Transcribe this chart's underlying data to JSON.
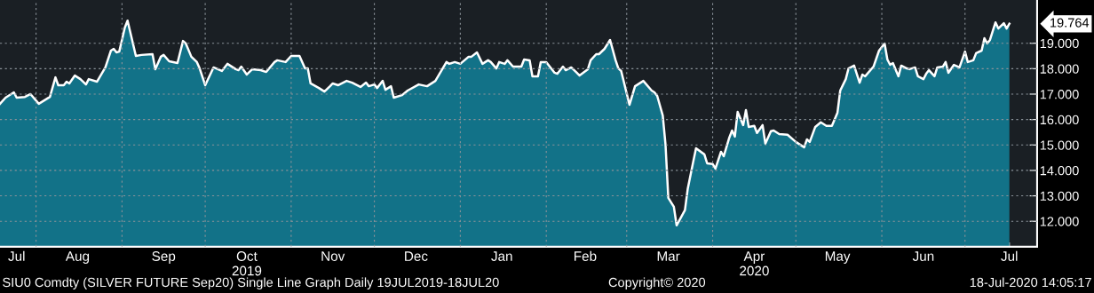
{
  "chart_data": {
    "type": "area",
    "grid": true,
    "legend": false,
    "x": [
      "2019-07-19",
      "2019-07-21",
      "2019-07-24",
      "2019-07-25",
      "2019-07-28",
      "2019-07-30",
      "2019-08-02",
      "2019-08-06",
      "2019-08-08",
      "2019-08-09",
      "2019-08-11",
      "2019-08-12",
      "2019-08-13",
      "2019-08-15",
      "2019-08-17",
      "2019-08-19",
      "2019-08-20",
      "2019-08-23",
      "2019-08-26",
      "2019-08-28",
      "2019-08-29",
      "2019-08-30",
      "2019-08-31",
      "2019-09-02",
      "2019-09-03",
      "2019-09-06",
      "2019-09-08",
      "2019-09-12",
      "2019-09-13",
      "2019-09-15",
      "2019-09-16",
      "2019-09-18",
      "2019-09-21",
      "2019-09-23",
      "2019-09-24",
      "2019-09-26",
      "2019-09-28",
      "2019-09-29",
      "2019-10-01",
      "2019-10-04",
      "2019-10-05",
      "2019-10-07",
      "2019-10-09",
      "2019-10-12",
      "2019-10-13",
      "2019-10-14",
      "2019-10-16",
      "2019-10-18",
      "2019-10-21",
      "2019-10-23",
      "2019-10-26",
      "2019-10-27",
      "2019-10-30",
      "2019-11-01",
      "2019-11-04",
      "2019-11-06",
      "2019-11-07",
      "2019-11-08",
      "2019-11-11",
      "2019-11-13",
      "2019-11-15",
      "2019-11-16",
      "2019-11-18",
      "2019-11-21",
      "2019-11-23",
      "2019-11-26",
      "2019-11-28",
      "2019-11-29",
      "2019-12-01",
      "2019-12-02",
      "2019-12-04",
      "2019-12-05",
      "2019-12-07",
      "2019-12-08",
      "2019-12-11",
      "2019-12-13",
      "2019-12-17",
      "2019-12-20",
      "2019-12-23",
      "2019-12-27",
      "2019-12-28",
      "2019-12-30",
      "2020-01-01",
      "2020-01-04",
      "2020-01-05",
      "2020-01-07",
      "2020-01-09",
      "2020-01-11",
      "2020-01-12",
      "2020-01-14",
      "2020-01-15",
      "2020-01-17",
      "2020-01-18",
      "2020-01-20",
      "2020-01-23",
      "2020-01-24",
      "2020-01-26",
      "2020-01-27",
      "2020-01-29",
      "2020-01-30",
      "2020-02-01",
      "2020-02-04",
      "2020-02-05",
      "2020-02-07",
      "2020-02-08",
      "2020-02-10",
      "2020-02-12",
      "2020-02-13",
      "2020-02-16",
      "2020-02-17",
      "2020-02-19",
      "2020-02-20",
      "2020-02-22",
      "2020-02-24",
      "2020-02-26",
      "2020-02-27",
      "2020-02-28",
      "2020-03-02",
      "2020-03-04",
      "2020-03-07",
      "2020-03-10",
      "2020-03-11",
      "2020-03-12",
      "2020-03-14",
      "2020-03-15",
      "2020-03-16",
      "2020-03-18",
      "2020-03-19",
      "2020-03-22",
      "2020-03-23",
      "2020-03-25",
      "2020-03-26",
      "2020-03-29",
      "2020-03-30",
      "2020-04-01",
      "2020-04-02",
      "2020-04-04",
      "2020-04-05",
      "2020-04-07",
      "2020-04-08",
      "2020-04-09",
      "2020-04-10",
      "2020-04-12",
      "2020-04-13",
      "2020-04-14",
      "2020-04-16",
      "2020-04-17",
      "2020-04-19",
      "2020-04-20",
      "2020-04-22",
      "2020-04-23",
      "2020-04-25",
      "2020-04-28",
      "2020-05-01",
      "2020-05-02",
      "2020-05-04",
      "2020-05-05",
      "2020-05-06",
      "2020-05-08",
      "2020-05-10",
      "2020-05-12",
      "2020-05-14",
      "2020-05-16",
      "2020-05-17",
      "2020-05-19",
      "2020-05-20",
      "2020-05-22",
      "2020-05-24",
      "2020-05-25",
      "2020-05-26",
      "2020-05-29",
      "2020-05-31",
      "2020-06-02",
      "2020-06-03",
      "2020-06-04",
      "2020-06-05",
      "2020-06-07",
      "2020-06-08",
      "2020-06-10",
      "2020-06-11",
      "2020-06-13",
      "2020-06-14",
      "2020-06-16",
      "2020-06-17",
      "2020-06-18",
      "2020-06-20",
      "2020-06-21",
      "2020-06-23",
      "2020-06-24",
      "2020-06-25",
      "2020-06-27",
      "2020-06-29",
      "2020-07-01",
      "2020-07-02",
      "2020-07-04",
      "2020-07-05",
      "2020-07-07",
      "2020-07-08",
      "2020-07-09",
      "2020-07-10",
      "2020-07-12",
      "2020-07-13",
      "2020-07-15",
      "2020-07-16",
      "2020-07-17"
    ],
    "series": [
      {
        "color": "#127288",
        "values": [
          16.62,
          16.86,
          17.07,
          16.86,
          16.89,
          17.0,
          16.62,
          16.89,
          17.66,
          17.35,
          17.35,
          17.49,
          17.42,
          17.73,
          17.59,
          17.38,
          17.59,
          17.49,
          18.05,
          18.71,
          18.78,
          18.64,
          18.67,
          19.61,
          19.89,
          18.5,
          18.54,
          18.57,
          17.98,
          18.47,
          18.54,
          18.29,
          18.22,
          19.09,
          18.99,
          18.47,
          18.26,
          18.01,
          17.35,
          18.05,
          18.01,
          17.91,
          18.19,
          17.98,
          17.94,
          18.08,
          17.77,
          17.98,
          17.94,
          17.87,
          18.26,
          18.33,
          18.26,
          18.5,
          18.5,
          18.01,
          18.01,
          17.42,
          17.24,
          17.1,
          17.31,
          17.42,
          17.35,
          17.52,
          17.45,
          17.28,
          17.45,
          17.31,
          17.38,
          17.24,
          17.52,
          17.17,
          17.31,
          16.86,
          16.96,
          17.14,
          17.38,
          17.31,
          17.52,
          18.26,
          18.19,
          18.26,
          18.19,
          18.47,
          18.47,
          18.64,
          18.19,
          18.33,
          18.26,
          18.01,
          18.26,
          18.19,
          18.33,
          18.08,
          18.08,
          18.36,
          18.33,
          17.7,
          17.7,
          18.26,
          18.26,
          17.84,
          17.8,
          18.08,
          17.94,
          18.05,
          17.84,
          17.73,
          17.98,
          18.33,
          18.57,
          18.57,
          18.78,
          19.13,
          18.33,
          18.01,
          17.91,
          16.58,
          17.31,
          17.52,
          17.14,
          17.07,
          16.93,
          16.16,
          15.01,
          12.92,
          12.57,
          11.84,
          12.44,
          13.27,
          14.35,
          14.87,
          14.63,
          14.28,
          14.25,
          14.07,
          14.73,
          14.56,
          15.29,
          15.57,
          15.33,
          16.3,
          15.78,
          16.37,
          15.71,
          15.75,
          15.47,
          15.78,
          15.05,
          15.54,
          15.57,
          15.43,
          15.4,
          15.12,
          15.05,
          14.91,
          15.22,
          15.12,
          15.71,
          15.89,
          15.75,
          15.75,
          16.27,
          17.14,
          17.59,
          18.01,
          18.12,
          17.45,
          17.77,
          17.7,
          18.08,
          18.71,
          18.99,
          18.36,
          18.15,
          18.22,
          17.7,
          18.12,
          18.01,
          17.98,
          18.05,
          17.7,
          17.59,
          17.8,
          17.94,
          17.7,
          18.05,
          18.08,
          18.26,
          17.84,
          18.15,
          18.05,
          18.67,
          18.26,
          18.33,
          18.61,
          18.71,
          19.2,
          18.99,
          19.13,
          19.82,
          19.58,
          19.79,
          19.58,
          19.764
        ]
      }
    ],
    "xlim": [
      "2019-07-19",
      "2020-07-27"
    ],
    "xticks": [
      {
        "value": "2019-07-25",
        "label": "Jul"
      },
      {
        "value": "2019-08-01",
        "label": null
      },
      {
        "value": "2019-08-16",
        "label": "Aug"
      },
      {
        "value": "2019-09-01",
        "label": null
      },
      {
        "value": "2019-09-16",
        "label": "Sep"
      },
      {
        "value": "2019-10-01",
        "label": null
      },
      {
        "value": "2019-10-16",
        "label": "Oct\n2019"
      },
      {
        "value": "2019-11-01",
        "label": null
      },
      {
        "value": "2019-11-16",
        "label": "Nov"
      },
      {
        "value": "2019-12-01",
        "label": null
      },
      {
        "value": "2019-12-16",
        "label": "Dec"
      },
      {
        "value": "2020-01-01",
        "label": null
      },
      {
        "value": "2020-01-16",
        "label": "Jan"
      },
      {
        "value": "2020-02-01",
        "label": null
      },
      {
        "value": "2020-02-15",
        "label": "Feb"
      },
      {
        "value": "2020-03-01",
        "label": null
      },
      {
        "value": "2020-03-16",
        "label": "Mar"
      },
      {
        "value": "2020-04-01",
        "label": null
      },
      {
        "value": "2020-04-16",
        "label": "Apr\n2020"
      },
      {
        "value": "2020-05-01",
        "label": null
      },
      {
        "value": "2020-05-16",
        "label": "May"
      },
      {
        "value": "2020-06-01",
        "label": null
      },
      {
        "value": "2020-06-16",
        "label": "Jun"
      },
      {
        "value": "2020-07-01",
        "label": null
      },
      {
        "value": "2020-07-17",
        "label": "Jul"
      }
    ],
    "ylim": [
      11.0,
      20.7
    ],
    "yticks": [
      {
        "value": 12,
        "label": "12.000"
      },
      {
        "value": 13,
        "label": "13.000"
      },
      {
        "value": 14,
        "label": "14.000"
      },
      {
        "value": 15,
        "label": "15.000"
      },
      {
        "value": 16,
        "label": "16.000"
      },
      {
        "value": 17,
        "label": "17.000"
      },
      {
        "value": 18,
        "label": "18.000"
      },
      {
        "value": 19,
        "label": "19.000"
      }
    ],
    "annotations": [
      "19.764",
      "SIU0 Comdty (SILVER FUTURE Sep20) Single Line Graph Daily 19JUL2019-18JUL20",
      "Copyright© 2020",
      "18-Jul-2020 14:05:17"
    ]
  }
}
